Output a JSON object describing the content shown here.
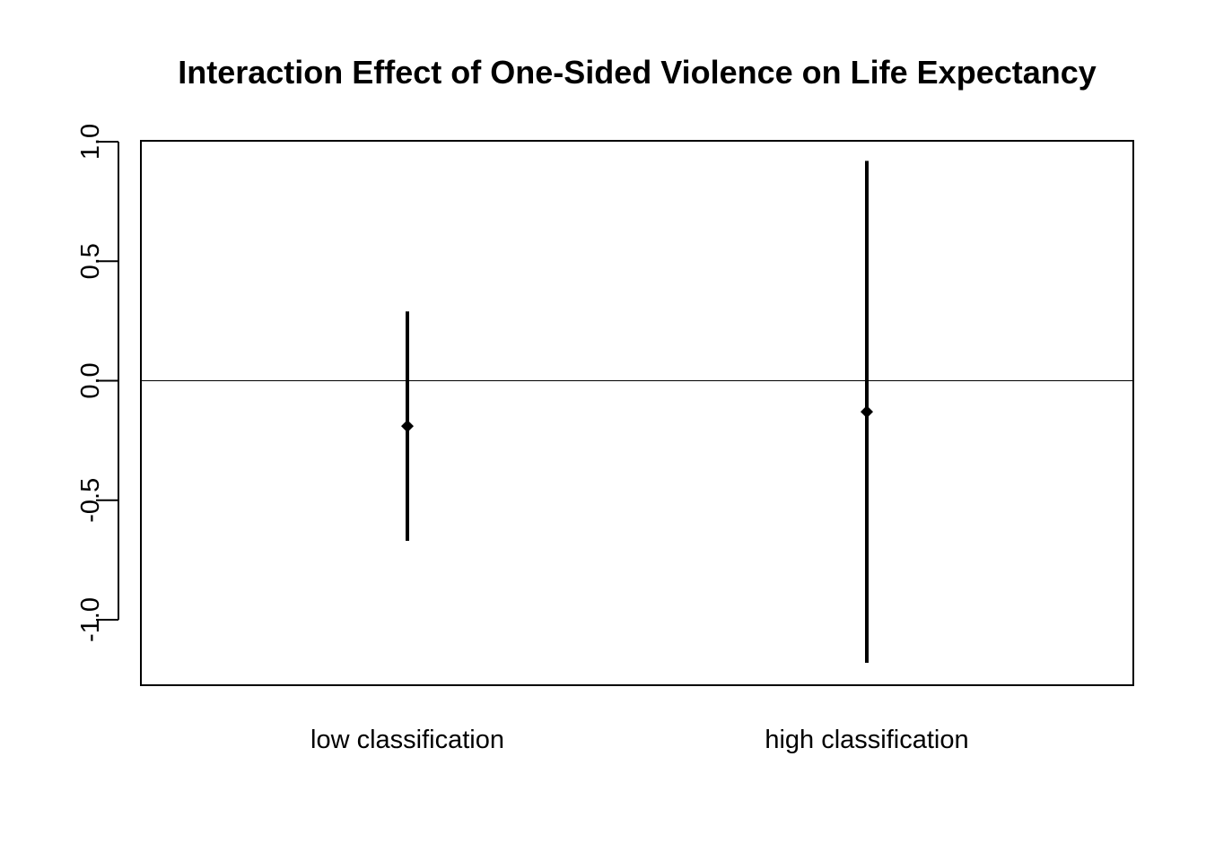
{
  "chart_data": {
    "type": "scatter",
    "title": "Interaction Effect of One-Sided Violence on Life Expectancy",
    "xlabel": "",
    "ylabel": "",
    "categories": [
      "low classification",
      "high classification"
    ],
    "estimates": [
      -0.19,
      -0.13
    ],
    "ci_lower": [
      -0.67,
      -1.18
    ],
    "ci_upper": [
      0.29,
      0.92
    ],
    "ylim": [
      -1.27,
      1.01
    ],
    "yticks": [
      -1.0,
      -0.5,
      0.0,
      0.5,
      1.0
    ],
    "ytick_labels": [
      "-1.0",
      "-0.5",
      "0.0",
      "0.5",
      "1.0"
    ],
    "reference_line": 0,
    "grid": false,
    "legend": "none",
    "colors": {
      "marks": "#000000",
      "background": "#ffffff"
    }
  }
}
